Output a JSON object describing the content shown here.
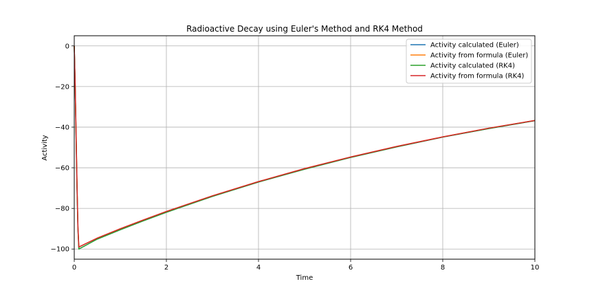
{
  "chart_data": {
    "type": "line",
    "title": "Radioactive Decay using Euler's Method and RK4 Method",
    "xlabel": "Time",
    "ylabel": "Activity",
    "xlim": [
      0,
      10
    ],
    "ylim": [
      -105,
      5
    ],
    "xticks": [
      0,
      2,
      4,
      6,
      8,
      10
    ],
    "yticks": [
      0,
      -20,
      -40,
      -60,
      -80,
      -100
    ],
    "grid": true,
    "legend_position": "upper right",
    "series": [
      {
        "name": "Activity calculated (Euler)",
        "color": "#1f77b4",
        "x": [
          0,
          0.01,
          0.02,
          0.04,
          0.06,
          0.08,
          0.1,
          0.5,
          1,
          1.5,
          2,
          3,
          4,
          5,
          6,
          7,
          8,
          9,
          10
        ],
        "y": [
          0,
          -10,
          -20,
          -45,
          -70,
          -90,
          -100,
          -95.1,
          -90.5,
          -86.1,
          -81.9,
          -74.1,
          -67.0,
          -60.7,
          -54.9,
          -49.7,
          -44.9,
          -40.7,
          -36.8
        ]
      },
      {
        "name": "Activity from formula (Euler)",
        "color": "#ff7f0e",
        "x": [
          0,
          0.01,
          0.02,
          0.04,
          0.06,
          0.08,
          0.1,
          0.5,
          1,
          1.5,
          2,
          3,
          4,
          5,
          6,
          7,
          8,
          9,
          10
        ],
        "y": [
          0,
          -9.5,
          -19,
          -43,
          -68,
          -89,
          -99,
          -94.6,
          -90.0,
          -85.7,
          -81.5,
          -73.8,
          -66.8,
          -60.4,
          -54.7,
          -49.5,
          -44.8,
          -40.5,
          -36.7
        ]
      },
      {
        "name": "Activity calculated (RK4)",
        "color": "#2ca02c",
        "x": [
          0,
          0.01,
          0.02,
          0.04,
          0.06,
          0.08,
          0.1,
          0.5,
          1,
          1.5,
          2,
          3,
          4,
          5,
          6,
          7,
          8,
          9,
          10
        ],
        "y": [
          0,
          -10,
          -20,
          -45,
          -70,
          -90,
          -100,
          -95.1,
          -90.5,
          -86.1,
          -81.9,
          -74.1,
          -67.0,
          -60.7,
          -54.9,
          -49.7,
          -44.9,
          -40.7,
          -36.8
        ]
      },
      {
        "name": "Activity from formula (RK4)",
        "color": "#d62728",
        "x": [
          0,
          0.01,
          0.02,
          0.04,
          0.06,
          0.08,
          0.1,
          0.5,
          1,
          1.5,
          2,
          3,
          4,
          5,
          6,
          7,
          8,
          9,
          10
        ],
        "y": [
          0,
          -9.5,
          -19,
          -43,
          -68,
          -89,
          -99,
          -94.6,
          -90.0,
          -85.7,
          -81.5,
          -73.8,
          -66.8,
          -60.4,
          -54.7,
          -49.5,
          -44.8,
          -40.5,
          -36.7
        ]
      }
    ]
  }
}
